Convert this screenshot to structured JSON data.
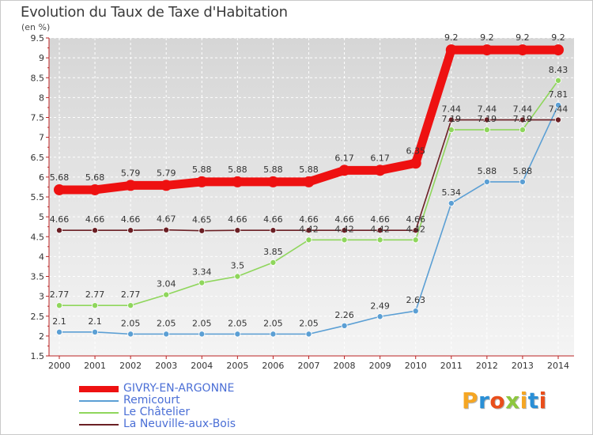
{
  "title": "Evolution du Taux de Taxe d'Habitation",
  "unit_label": "(en %)",
  "logo": {
    "text": "Proxiti",
    "colors": [
      "#f5a623",
      "#2a8fd6",
      "#e94e1b",
      "#8dc63f",
      "#f5a623",
      "#2a8fd6",
      "#e94e1b"
    ]
  },
  "legend": [
    {
      "label": "GIVRY-EN-ARGONNE"
    },
    {
      "label": "Remicourt"
    },
    {
      "label": "Le Châtelier"
    },
    {
      "label": "La Neuville-aux-Bois"
    }
  ],
  "chart_data": {
    "type": "line",
    "title": "Evolution du Taux de Taxe d'Habitation",
    "ylabel": "(en %)",
    "xlabel": "",
    "ylim": [
      1.5,
      9.5
    ],
    "yticks": [
      1.5,
      2,
      2.5,
      3,
      3.5,
      4,
      4.5,
      5,
      5.5,
      6,
      6.5,
      7,
      7.5,
      8,
      8.5,
      9,
      9.5
    ],
    "x": [
      "2000",
      "2001",
      "2002",
      "2003",
      "2004",
      "2005",
      "2006",
      "2007",
      "2008",
      "2009",
      "2010",
      "2011",
      "2012",
      "2013",
      "2014"
    ],
    "grid": true,
    "legend_position": "bottom-left",
    "series": [
      {
        "name": "GIVRY-EN-ARGONNE",
        "color": "#ee1111",
        "values": [
          5.68,
          5.68,
          5.79,
          5.79,
          5.88,
          5.88,
          5.88,
          5.88,
          6.17,
          6.17,
          6.35,
          9.2,
          9.2,
          9.2,
          9.2
        ],
        "labels": [
          "5.68",
          "5.68",
          "5.79",
          "5.79",
          "5.88",
          "5.88",
          "5.88",
          "5.88",
          "6.17",
          "6.17",
          "6.35",
          "9.2",
          "9.2",
          "9.2",
          "9.2"
        ]
      },
      {
        "name": "Remicourt",
        "color": "#5b9fd4",
        "values": [
          2.1,
          2.1,
          2.05,
          2.05,
          2.05,
          2.05,
          2.05,
          2.05,
          2.26,
          2.49,
          2.63,
          5.34,
          5.88,
          5.88,
          7.81
        ],
        "labels": [
          "2.1",
          "2.1",
          "2.05",
          "2.05",
          "2.05",
          "2.05",
          "2.05",
          "2.05",
          "2.26",
          "2.49",
          "2.63",
          "5.34",
          "5.88",
          "5.88",
          "7.81"
        ]
      },
      {
        "name": "Le Châtelier",
        "color": "#8fd65c",
        "values": [
          2.77,
          2.77,
          2.77,
          3.04,
          3.34,
          3.5,
          3.85,
          4.42,
          4.42,
          4.42,
          4.42,
          7.19,
          7.19,
          7.19,
          8.43
        ],
        "labels": [
          "2.77",
          "2.77",
          "2.77",
          "3.04",
          "3.34",
          "3.5",
          "3.85",
          "4.42",
          "4.42",
          "4.42",
          "4.42",
          "7.19",
          "7.19",
          "7.19",
          "8.43"
        ]
      },
      {
        "name": "La Neuville-aux-Bois",
        "color": "#6b1f24",
        "values": [
          4.66,
          4.66,
          4.66,
          4.67,
          4.65,
          4.66,
          4.66,
          4.66,
          4.66,
          4.66,
          4.66,
          7.44,
          7.44,
          7.44,
          7.44
        ],
        "labels": [
          "4.66",
          "4.66",
          "4.66",
          "4.67",
          "4.65",
          "4.66",
          "4.66",
          "4.66",
          "4.66",
          "4.66",
          "4.66",
          "7.44",
          "7.44",
          "7.44",
          "7.44"
        ]
      }
    ]
  }
}
